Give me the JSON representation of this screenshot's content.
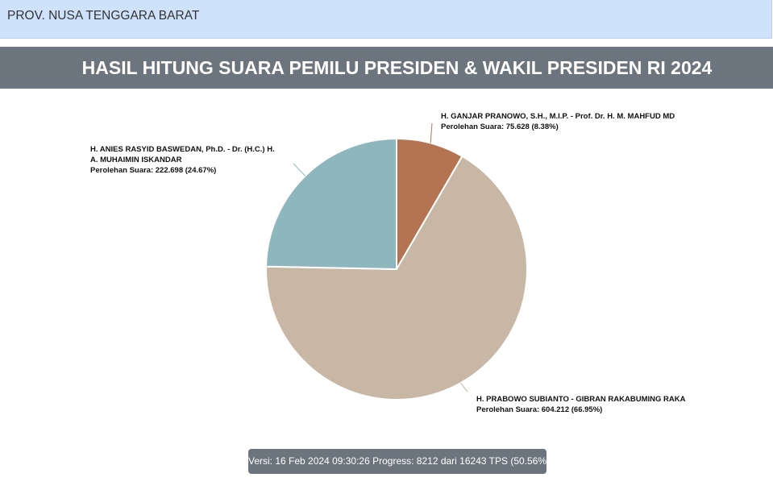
{
  "header": {
    "region": "PROV. NUSA TENGGARA BARAT"
  },
  "title": "HASIL HITUNG SUARA PEMILU PRESIDEN & WAKIL PRESIDEN RI 2024",
  "chart_data": {
    "type": "pie",
    "start_angle_deg": 0,
    "direction": "clockwise",
    "series": [
      {
        "name_lines": [
          "H. GANJAR PRANOWO, S.H., M.I.P. - Prof. Dr. H. M. MAHFUD MD"
        ],
        "votes": 75628,
        "percent": 8.38,
        "detail": "Perolehan Suara: 75.628 (8.38%)",
        "color": "#b47452"
      },
      {
        "name_lines": [
          "H. PRABOWO SUBIANTO - GIBRAN RAKABUMING RAKA"
        ],
        "votes": 604212,
        "percent": 66.95,
        "detail": "Perolehan Suara: 604.212 (66.95%)",
        "color": "#c7b7a4"
      },
      {
        "name_lines": [
          "H. ANIES RASYID BASWEDAN, Ph.D. - Dr. (H.C.) H.",
          "A. MUHAIMIN ISKANDAR"
        ],
        "votes": 222698,
        "percent": 24.67,
        "detail": "Perolehan Suara: 222.698 (24.67%)",
        "color": "#8db7bd"
      }
    ]
  },
  "footer": {
    "text": "Versi: 16 Feb 2024 09:30:26 Progress: 8212 dari 16243 TPS (50.56%)"
  }
}
